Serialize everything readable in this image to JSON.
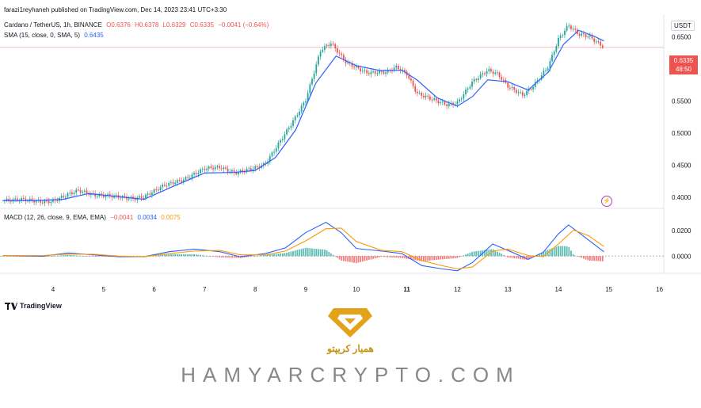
{
  "header": {
    "published": "farazi1reyhaneh published on TradingView.com, Dec 14, 2023 23:41 UTC+3:30",
    "symbol": "Cardano / TetherUS, 1h, BINANCE",
    "o": "O0.6376",
    "h": "H0.6378",
    "l": "L0.6329",
    "c": "C0.6335",
    "chg": "−0.0041 (−0.64%)",
    "sma_label": "SMA (15, close, 0, SMA, 5)",
    "sma_val": "0.6435",
    "macd_label": "MACD (12, 26, close, 9, EMA, EMA)",
    "macd_hist": "−0.0041",
    "macd_line": "0.0034",
    "macd_signal": "0.0075",
    "currency": "USDT"
  },
  "price_tag": {
    "price": "0.6335",
    "countdown": "48:50"
  },
  "footer": {
    "tradingview": "TradingView",
    "brand": "HAMYARCRYPTO.COM",
    "brand_fa": "همیار کریپتو"
  },
  "colors": {
    "up": "#26a69a",
    "down": "#ef5350",
    "sma": "#2962ff",
    "macd": "#2962ff",
    "signal": "#ff9800",
    "gold": "#e3a21a"
  },
  "chart_data": [
    {
      "type": "candlestick",
      "title": "Cardano / TetherUS, 1h, BINANCE",
      "x_ticks": [
        "4",
        "5",
        "6",
        "7",
        "8",
        "9",
        "10",
        "11",
        "12",
        "13",
        "14",
        "15",
        "16"
      ],
      "y_ticks": [
        "0.6500",
        "0.6000",
        "0.5500",
        "0.5000",
        "0.4500",
        "0.4000"
      ],
      "ylim": [
        0.383,
        0.685
      ],
      "grid": false,
      "close_path": [
        [
          3.0,
          0.395
        ],
        [
          3.4,
          0.397
        ],
        [
          3.8,
          0.393
        ],
        [
          4.0,
          0.394
        ],
        [
          4.3,
          0.405
        ],
        [
          4.5,
          0.411
        ],
        [
          4.8,
          0.404
        ],
        [
          5.2,
          0.402
        ],
        [
          5.6,
          0.398
        ],
        [
          5.8,
          0.401
        ],
        [
          6.2,
          0.419
        ],
        [
          6.6,
          0.428
        ],
        [
          7.0,
          0.445
        ],
        [
          7.3,
          0.447
        ],
        [
          7.6,
          0.438
        ],
        [
          8.0,
          0.446
        ],
        [
          8.2,
          0.452
        ],
        [
          8.5,
          0.488
        ],
        [
          8.8,
          0.525
        ],
        [
          9.0,
          0.552
        ],
        [
          9.3,
          0.63
        ],
        [
          9.5,
          0.64
        ],
        [
          9.8,
          0.61
        ],
        [
          10.2,
          0.594
        ],
        [
          10.6,
          0.595
        ],
        [
          10.8,
          0.603
        ],
        [
          11.0,
          0.592
        ],
        [
          11.2,
          0.562
        ],
        [
          11.5,
          0.553
        ],
        [
          11.8,
          0.544
        ],
        [
          12.0,
          0.547
        ],
        [
          12.3,
          0.58
        ],
        [
          12.6,
          0.598
        ],
        [
          12.8,
          0.592
        ],
        [
          13.0,
          0.573
        ],
        [
          13.3,
          0.559
        ],
        [
          13.5,
          0.573
        ],
        [
          13.8,
          0.604
        ],
        [
          14.0,
          0.646
        ],
        [
          14.2,
          0.668
        ],
        [
          14.4,
          0.654
        ],
        [
          14.6,
          0.651
        ],
        [
          14.9,
          0.6335
        ]
      ],
      "sma_path": [
        [
          3.0,
          0.395
        ],
        [
          3.6,
          0.395
        ],
        [
          4.2,
          0.397
        ],
        [
          4.7,
          0.406
        ],
        [
          5.2,
          0.402
        ],
        [
          5.8,
          0.397
        ],
        [
          6.4,
          0.418
        ],
        [
          7.0,
          0.438
        ],
        [
          7.6,
          0.439
        ],
        [
          8.0,
          0.442
        ],
        [
          8.4,
          0.462
        ],
        [
          8.8,
          0.505
        ],
        [
          9.2,
          0.578
        ],
        [
          9.6,
          0.62
        ],
        [
          10.0,
          0.605
        ],
        [
          10.5,
          0.597
        ],
        [
          10.9,
          0.598
        ],
        [
          11.2,
          0.583
        ],
        [
          11.6,
          0.555
        ],
        [
          12.0,
          0.542
        ],
        [
          12.3,
          0.557
        ],
        [
          12.6,
          0.583
        ],
        [
          13.0,
          0.58
        ],
        [
          13.4,
          0.567
        ],
        [
          13.8,
          0.595
        ],
        [
          14.1,
          0.638
        ],
        [
          14.4,
          0.66
        ],
        [
          14.7,
          0.651
        ],
        [
          14.9,
          0.6435
        ]
      ]
    },
    {
      "type": "line",
      "title": "MACD (12, 26, close, 9, EMA, EMA)",
      "y_ticks": [
        "0.0200",
        "0.0000"
      ],
      "ylim": [
        -0.0135,
        0.0375
      ],
      "series": [
        {
          "name": "MACD",
          "path": [
            [
              3.0,
              0.0005
            ],
            [
              3.8,
              0.0
            ],
            [
              4.3,
              0.0025
            ],
            [
              4.8,
              0.001
            ],
            [
              5.3,
              -0.0005
            ],
            [
              5.8,
              -0.0005
            ],
            [
              6.3,
              0.0035
            ],
            [
              6.8,
              0.0055
            ],
            [
              7.3,
              0.0035
            ],
            [
              7.7,
              -0.0005
            ],
            [
              8.2,
              0.002
            ],
            [
              8.6,
              0.0065
            ],
            [
              9.0,
              0.0185
            ],
            [
              9.4,
              0.0265
            ],
            [
              9.7,
              0.0185
            ],
            [
              10.0,
              0.006
            ],
            [
              10.5,
              0.004
            ],
            [
              10.9,
              0.002
            ],
            [
              11.3,
              -0.0075
            ],
            [
              11.7,
              -0.01
            ],
            [
              12.0,
              -0.0115
            ],
            [
              12.3,
              -0.005
            ],
            [
              12.7,
              0.0095
            ],
            [
              13.0,
              0.0045
            ],
            [
              13.4,
              -0.0025
            ],
            [
              13.7,
              0.003
            ],
            [
              14.0,
              0.0175
            ],
            [
              14.2,
              0.0245
            ],
            [
              14.5,
              0.0155
            ],
            [
              14.9,
              0.0034
            ]
          ]
        },
        {
          "name": "Signal",
          "path": [
            [
              3.0,
              0.0005
            ],
            [
              3.8,
              0.0005
            ],
            [
              4.3,
              0.0015
            ],
            [
              4.8,
              0.0015
            ],
            [
              5.3,
              0.0
            ],
            [
              5.8,
              -0.0005
            ],
            [
              6.3,
              0.002
            ],
            [
              6.8,
              0.004
            ],
            [
              7.3,
              0.0045
            ],
            [
              7.7,
              0.001
            ],
            [
              8.2,
              0.001
            ],
            [
              8.6,
              0.004
            ],
            [
              9.0,
              0.012
            ],
            [
              9.4,
              0.0215
            ],
            [
              9.7,
              0.022
            ],
            [
              10.0,
              0.0115
            ],
            [
              10.5,
              0.0045
            ],
            [
              10.9,
              0.0035
            ],
            [
              11.3,
              -0.0035
            ],
            [
              11.7,
              -0.0075
            ],
            [
              12.0,
              -0.01
            ],
            [
              12.3,
              -0.0085
            ],
            [
              12.7,
              0.004
            ],
            [
              13.0,
              0.0055
            ],
            [
              13.4,
              0.0005
            ],
            [
              13.7,
              -0.0005
            ],
            [
              14.0,
              0.0095
            ],
            [
              14.3,
              0.0205
            ],
            [
              14.6,
              0.016
            ],
            [
              14.9,
              0.0075
            ]
          ]
        }
      ]
    }
  ]
}
